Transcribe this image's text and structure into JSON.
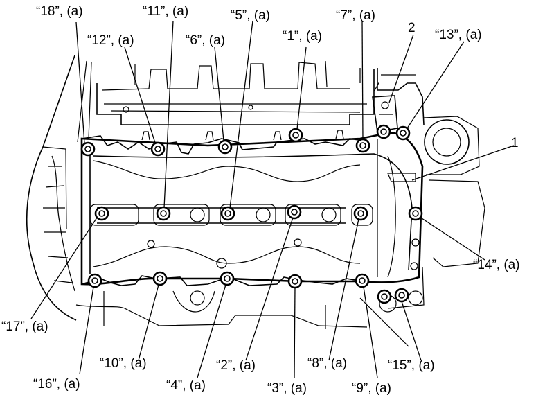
{
  "callouts": [
    {
      "id": "c18",
      "text": "“18”, (a)"
    },
    {
      "id": "c11",
      "text": "“11”, (a)"
    },
    {
      "id": "c5",
      "text": "“5”, (a)"
    },
    {
      "id": "c7",
      "text": "“7”, (a)"
    },
    {
      "id": "c12",
      "text": "“12”, (a)"
    },
    {
      "id": "c6",
      "text": "“6”, (a)"
    },
    {
      "id": "c1",
      "text": "“1”, (a)"
    },
    {
      "id": "p2",
      "text": "2"
    },
    {
      "id": "c13",
      "text": "“13”, (a)"
    },
    {
      "id": "p1",
      "text": "1"
    },
    {
      "id": "c14",
      "text": "“14”, (a)"
    },
    {
      "id": "c17",
      "text": "“17”, (a)"
    },
    {
      "id": "c16",
      "text": "“16”, (a)"
    },
    {
      "id": "c10",
      "text": "“10”, (a)"
    },
    {
      "id": "c4",
      "text": "“4”, (a)"
    },
    {
      "id": "c2",
      "text": "“2”, (a)"
    },
    {
      "id": "c3",
      "text": "“3”, (a)"
    },
    {
      "id": "c8",
      "text": "“8”, (a)"
    },
    {
      "id": "c9",
      "text": "“9”, (a)"
    },
    {
      "id": "c15",
      "text": "“15”, (a)"
    }
  ]
}
